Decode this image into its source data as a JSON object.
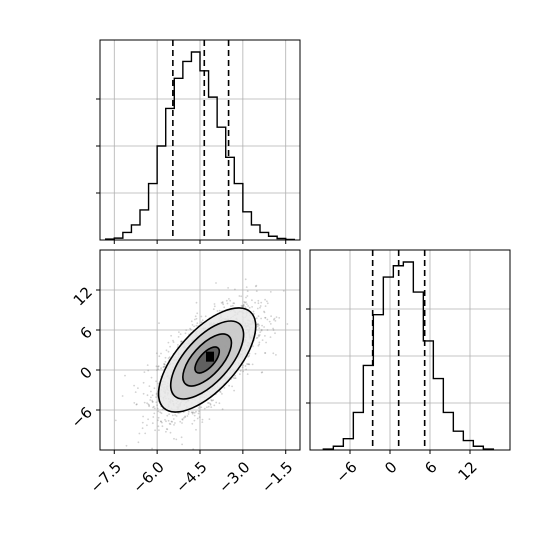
{
  "chart_data": {
    "type": "corner",
    "parameters": [
      "",
      ""
    ],
    "quantiles": [
      0.16,
      0.5,
      0.84
    ],
    "hist_x": {
      "type": "bar",
      "xlim": [
        -8.0,
        -1.0
      ],
      "ylim": [
        0,
        1.0
      ],
      "bin_edges": [
        -7.8,
        -7.5,
        -7.2,
        -6.9,
        -6.6,
        -6.3,
        -6.0,
        -5.7,
        -5.4,
        -5.1,
        -4.8,
        -4.5,
        -4.2,
        -3.9,
        -3.6,
        -3.3,
        -3.0,
        -2.7,
        -2.4,
        -2.1,
        -1.8,
        -1.5,
        -1.2
      ],
      "values": [
        0.005,
        0.01,
        0.04,
        0.08,
        0.16,
        0.3,
        0.5,
        0.7,
        0.86,
        0.95,
        1.0,
        0.9,
        0.76,
        0.6,
        0.44,
        0.3,
        0.15,
        0.08,
        0.04,
        0.02,
        0.008,
        0.003
      ],
      "quantile_lines": [
        -5.45,
        -4.35,
        -3.5
      ],
      "xticks": [
        -7.5,
        -6.0,
        -4.5,
        -3.0,
        -1.5
      ],
      "yticks": [
        0.25,
        0.5,
        0.75
      ]
    },
    "hist_y": {
      "type": "bar",
      "xlim": [
        -12,
        18
      ],
      "ylim": [
        0,
        1.0
      ],
      "bin_edges": [
        -10,
        -8.5,
        -7,
        -5.5,
        -4,
        -2.5,
        -1,
        0.5,
        2,
        3.5,
        5,
        6.5,
        8,
        9.5,
        11,
        12.5,
        14,
        15.5
      ],
      "values": [
        0.005,
        0.02,
        0.06,
        0.2,
        0.45,
        0.72,
        0.92,
        0.98,
        1.0,
        0.84,
        0.58,
        0.38,
        0.2,
        0.1,
        0.05,
        0.02,
        0.005
      ],
      "quantile_lines": [
        -2.6,
        1.3,
        5.2
      ],
      "xticks": [
        -6,
        0,
        6,
        12
      ],
      "xtick_labels": [
        "−6",
        "0",
        "6",
        "12"
      ],
      "yticks": [
        0.25,
        0.5,
        0.75
      ]
    },
    "scatter": {
      "type": "scatter",
      "xlim": [
        -8.0,
        -1.0
      ],
      "ylim": [
        -12,
        18
      ],
      "xticks": [
        -7.5,
        -6.0,
        -4.5,
        -3.0,
        -1.5
      ],
      "xtick_labels": [
        "−7.5",
        "−6.0",
        "−4.5",
        "−3.0",
        "−1.5"
      ],
      "yticks": [
        -6,
        0,
        6,
        12
      ],
      "ytick_labels": [
        "−6",
        "0",
        "6",
        "12"
      ],
      "center": [
        -4.25,
        1.5
      ],
      "std": [
        0.85,
        3.9
      ],
      "correlation": 0.65,
      "n_points": 2600,
      "point_color": "#7f7f7f",
      "contour_levels_sigma": [
        0.5,
        1.0,
        1.5,
        2.0
      ],
      "density_fill": [
        "#555555",
        "#999999",
        "#c8c8c8",
        "#e8e8e8"
      ],
      "peak_marker": [
        -4.15,
        2.0
      ]
    },
    "grid": true,
    "line_color": "#000000",
    "grid_color": "#b0b0b0"
  }
}
